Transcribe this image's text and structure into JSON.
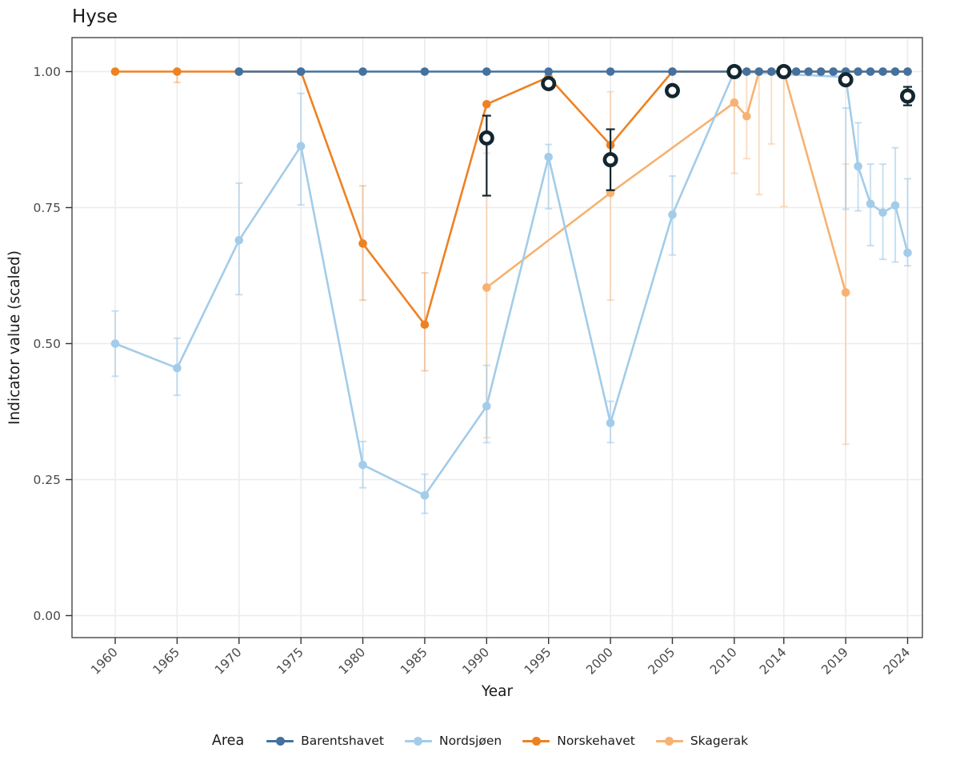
{
  "title": "Hyse",
  "axes": {
    "x_label": "Year",
    "y_label": "Indicator value (scaled)",
    "x_ticks": [
      1960,
      1965,
      1970,
      1975,
      1980,
      1985,
      1990,
      1995,
      2000,
      2005,
      2010,
      2014,
      2019,
      2024
    ],
    "y_ticks": [
      {
        "value": 1.0,
        "label": "1.00"
      },
      {
        "value": 0.75,
        "label": "0.75"
      },
      {
        "value": 0.5,
        "label": "0.50"
      },
      {
        "value": 0.25,
        "label": "0.25"
      },
      {
        "value": 0.0,
        "label": "0.00"
      }
    ]
  },
  "legend": {
    "title": "Area",
    "entries": [
      {
        "label": "Barentshavet",
        "color": "#44719E"
      },
      {
        "label": "Nordsjøen",
        "color": "#A3CCE9"
      },
      {
        "label": "Norskehavet",
        "color": "#EF8122"
      },
      {
        "label": "Skagerak",
        "color": "#F7B272"
      }
    ]
  },
  "colors": {
    "grid": "#ECECEC",
    "panel_border": "#474747",
    "tick": "#333333",
    "tick_label": "#4a4a4a",
    "marker_ring": "#13262F",
    "background": "#ffffff"
  },
  "chart_data": {
    "type": "line",
    "title": "Hyse",
    "xlabel": "Year",
    "ylabel": "Indicator value (scaled)",
    "xlim": [
      1956.5,
      2025.2
    ],
    "ylim": [
      0,
      1.03
    ],
    "grid": "major",
    "legend_position": "bottom",
    "series": [
      {
        "name": "Skagerak",
        "color": "#F7B272",
        "ci_color": "rgba(247,178,114,0.42)",
        "points": [
          {
            "x": 1990,
            "y": 0.603,
            "lo": 0.327,
            "hi": 0.85
          },
          {
            "x": 2000,
            "y": 0.777,
            "lo": 0.58,
            "hi": 0.963
          },
          {
            "x": 2010,
            "y": 0.943,
            "lo": 0.813,
            "hi": 1.0
          },
          {
            "x": 2011,
            "y": 0.918,
            "lo": 0.84,
            "hi": 1.0
          },
          {
            "x": 2012,
            "y": 1.0,
            "lo": 0.774,
            "hi": 1.0
          },
          {
            "x": 2013,
            "y": 1.0,
            "lo": 0.867,
            "hi": 1.0
          },
          {
            "x": 2014,
            "y": 1.0,
            "lo": 0.752,
            "hi": 1.0
          },
          {
            "x": 2019,
            "y": 0.594,
            "lo": 0.315,
            "hi": 0.83
          }
        ]
      },
      {
        "name": "Nordsjøen",
        "color": "#A3CCE9",
        "ci_color": "rgba(163,204,233,0.6)",
        "points": [
          {
            "x": 1960,
            "y": 0.5,
            "lo": 0.44,
            "hi": 0.56
          },
          {
            "x": 1965,
            "y": 0.455,
            "lo": 0.405,
            "hi": 0.51
          },
          {
            "x": 1970,
            "y": 0.69,
            "lo": 0.59,
            "hi": 0.795
          },
          {
            "x": 1975,
            "y": 0.863,
            "lo": 0.755,
            "hi": 0.96
          },
          {
            "x": 1980,
            "y": 0.277,
            "lo": 0.235,
            "hi": 0.32
          },
          {
            "x": 1985,
            "y": 0.221,
            "lo": 0.188,
            "hi": 0.26
          },
          {
            "x": 1990,
            "y": 0.385,
            "lo": 0.318,
            "hi": 0.46
          },
          {
            "x": 1995,
            "y": 0.843,
            "lo": 0.748,
            "hi": 0.866
          },
          {
            "x": 2000,
            "y": 0.354,
            "lo": 0.318,
            "hi": 0.394
          },
          {
            "x": 2005,
            "y": 0.737,
            "lo": 0.663,
            "hi": 0.808
          },
          {
            "x": 2010,
            "y": 1.0
          },
          {
            "x": 2019,
            "y": 0.99,
            "lo": 0.747,
            "hi": 0.933
          },
          {
            "x": 2020,
            "y": 0.826,
            "lo": 0.744,
            "hi": 0.906
          },
          {
            "x": 2021,
            "y": 0.757,
            "lo": 0.68,
            "hi": 0.83
          },
          {
            "x": 2022,
            "y": 0.741,
            "lo": 0.655,
            "hi": 0.83
          },
          {
            "x": 2023,
            "y": 0.754,
            "lo": 0.65,
            "hi": 0.86
          },
          {
            "x": 2024,
            "y": 0.667,
            "lo": 0.643,
            "hi": 0.803
          }
        ]
      },
      {
        "name": "Norskehavet",
        "color": "#EF8122",
        "ci_color": "rgba(239,129,34,0.35)",
        "points": [
          {
            "x": 1960,
            "y": 1.0
          },
          {
            "x": 1965,
            "y": 1.0,
            "lo": 0.98,
            "hi": 1.0
          },
          {
            "x": 1970,
            "y": 1.0
          },
          {
            "x": 1975,
            "y": 1.0
          },
          {
            "x": 1980,
            "y": 0.684,
            "lo": 0.58,
            "hi": 0.79
          },
          {
            "x": 1985,
            "y": 0.535,
            "lo": 0.45,
            "hi": 0.63
          },
          {
            "x": 1990,
            "y": 0.94
          },
          {
            "x": 1995,
            "y": 0.99
          },
          {
            "x": 2000,
            "y": 0.865
          },
          {
            "x": 2005,
            "y": 1.0
          },
          {
            "x": 2010,
            "y": 1.0
          },
          {
            "x": 2011,
            "y": 1.0
          },
          {
            "x": 2012,
            "y": 1.0
          },
          {
            "x": 2013,
            "y": 1.0
          },
          {
            "x": 2014,
            "y": 1.0
          },
          {
            "x": 2015,
            "y": 1.0
          },
          {
            "x": 2016,
            "y": 1.0
          },
          {
            "x": 2017,
            "y": 1.0
          },
          {
            "x": 2018,
            "y": 1.0
          },
          {
            "x": 2019,
            "y": 1.0
          },
          {
            "x": 2020,
            "y": 1.0
          },
          {
            "x": 2021,
            "y": 1.0
          },
          {
            "x": 2022,
            "y": 1.0
          },
          {
            "x": 2023,
            "y": 1.0
          },
          {
            "x": 2024,
            "y": 1.0
          }
        ]
      },
      {
        "name": "Barentshavet",
        "color": "#44719E",
        "ci_color": "rgba(68,113,158,0.4)",
        "points": [
          {
            "x": 1970,
            "y": 1.0
          },
          {
            "x": 1975,
            "y": 1.0
          },
          {
            "x": 1980,
            "y": 1.0
          },
          {
            "x": 1985,
            "y": 1.0
          },
          {
            "x": 1990,
            "y": 1.0
          },
          {
            "x": 1995,
            "y": 1.0
          },
          {
            "x": 2000,
            "y": 1.0
          },
          {
            "x": 2005,
            "y": 1.0
          },
          {
            "x": 2010,
            "y": 1.0
          },
          {
            "x": 2011,
            "y": 1.0
          },
          {
            "x": 2012,
            "y": 1.0
          },
          {
            "x": 2013,
            "y": 1.0
          },
          {
            "x": 2014,
            "y": 1.0
          },
          {
            "x": 2015,
            "y": 1.0
          },
          {
            "x": 2016,
            "y": 1.0
          },
          {
            "x": 2017,
            "y": 1.0
          },
          {
            "x": 2018,
            "y": 1.0
          },
          {
            "x": 2019,
            "y": 1.0
          },
          {
            "x": 2020,
            "y": 1.0
          },
          {
            "x": 2021,
            "y": 1.0
          },
          {
            "x": 2022,
            "y": 1.0
          },
          {
            "x": 2023,
            "y": 1.0
          },
          {
            "x": 2024,
            "y": 1.0
          }
        ]
      }
    ],
    "assessment_markers": {
      "name": "assessment-open-circles",
      "color": "#13262F",
      "points": [
        {
          "x": 1990,
          "y": 0.878,
          "lo": 0.772,
          "hi": 0.919
        },
        {
          "x": 1995,
          "y": 0.978
        },
        {
          "x": 2000,
          "y": 0.838,
          "lo": 0.782,
          "hi": 0.894
        },
        {
          "x": 2005,
          "y": 0.965
        },
        {
          "x": 2010,
          "y": 1.0
        },
        {
          "x": 2014,
          "y": 1.0
        },
        {
          "x": 2019,
          "y": 0.985
        },
        {
          "x": 2024,
          "y": 0.955,
          "lo": 0.938,
          "hi": 0.972
        }
      ]
    }
  }
}
